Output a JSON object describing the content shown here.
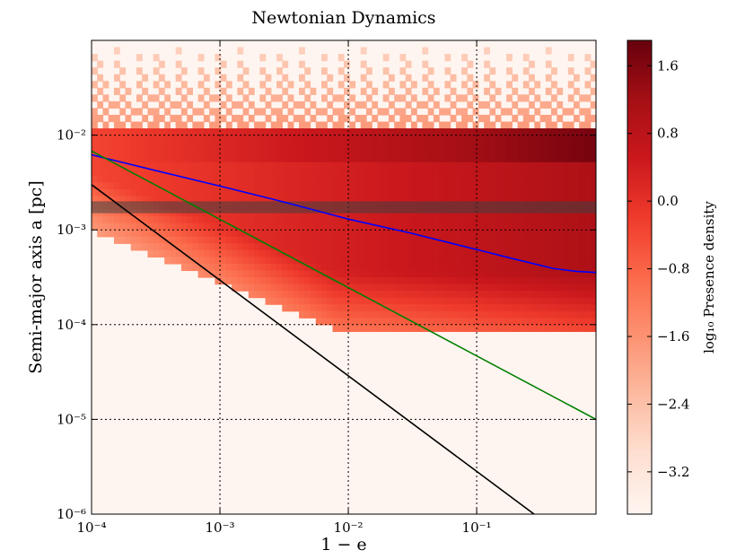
{
  "chart_data": {
    "type": "heatmap",
    "title": "Newtonian Dynamics",
    "xlabel": "1 − e",
    "ylabel": "Semi-major axis a [pc]",
    "x_scale": "log",
    "y_scale": "log",
    "xlim": [
      0.0001,
      0.85
    ],
    "ylim": [
      1e-06,
      0.1
    ],
    "grid": true,
    "x_ticks": [
      {
        "value": 0.0001,
        "label": "10⁻⁴"
      },
      {
        "value": 0.001,
        "label": "10⁻³"
      },
      {
        "value": 0.01,
        "label": "10⁻²"
      },
      {
        "value": 0.1,
        "label": "10⁻¹"
      }
    ],
    "y_ticks": [
      {
        "value": 1e-06,
        "label": "10⁻⁶"
      },
      {
        "value": 1e-05,
        "label": "10⁻⁵"
      },
      {
        "value": 0.0001,
        "label": "10⁻⁴"
      },
      {
        "value": 0.001,
        "label": "10⁻³"
      },
      {
        "value": 0.01,
        "label": "10⁻²"
      }
    ],
    "colorbar": {
      "label": "log₁₀ Presence density",
      "range": [
        -3.7,
        1.9
      ],
      "ticks": [
        {
          "value": 1.6,
          "label": "1.6"
        },
        {
          "value": 0.8,
          "label": "0.8"
        },
        {
          "value": 0.0,
          "label": "0.0"
        },
        {
          "value": -0.8,
          "label": "−0.8"
        },
        {
          "value": -1.6,
          "label": "−1.6"
        },
        {
          "value": -2.4,
          "label": "−2.4"
        },
        {
          "value": -3.2,
          "label": "−3.2"
        }
      ],
      "colormap": [
        "#fff5f0",
        "#fee0d2",
        "#fcbba1",
        "#fc9272",
        "#fb6a4a",
        "#ef3b2c",
        "#cb181d",
        "#a50f15",
        "#67000d"
      ]
    },
    "shaded_band": {
      "y_range": [
        0.0015,
        0.002
      ],
      "color": "#404040"
    },
    "series": [
      {
        "name": "blue-curve",
        "color": "#0000ff",
        "x": [
          0.0001,
          0.0003,
          0.001,
          0.003,
          0.01,
          0.03,
          0.1,
          0.2,
          0.4,
          0.6,
          0.85
        ],
        "y": [
          0.0062,
          0.0043,
          0.0029,
          0.002,
          0.0013,
          0.00093,
          0.00062,
          0.00049,
          0.00039,
          0.000365,
          0.000355
        ]
      },
      {
        "name": "green-line",
        "color": "#008000",
        "x": [
          0.0001,
          0.85
        ],
        "y": [
          0.0068,
          1e-05
        ]
      },
      {
        "name": "black-line",
        "color": "#000000",
        "x": [
          0.0001,
          0.28
        ],
        "y": [
          0.003,
          1e-06
        ]
      }
    ]
  }
}
